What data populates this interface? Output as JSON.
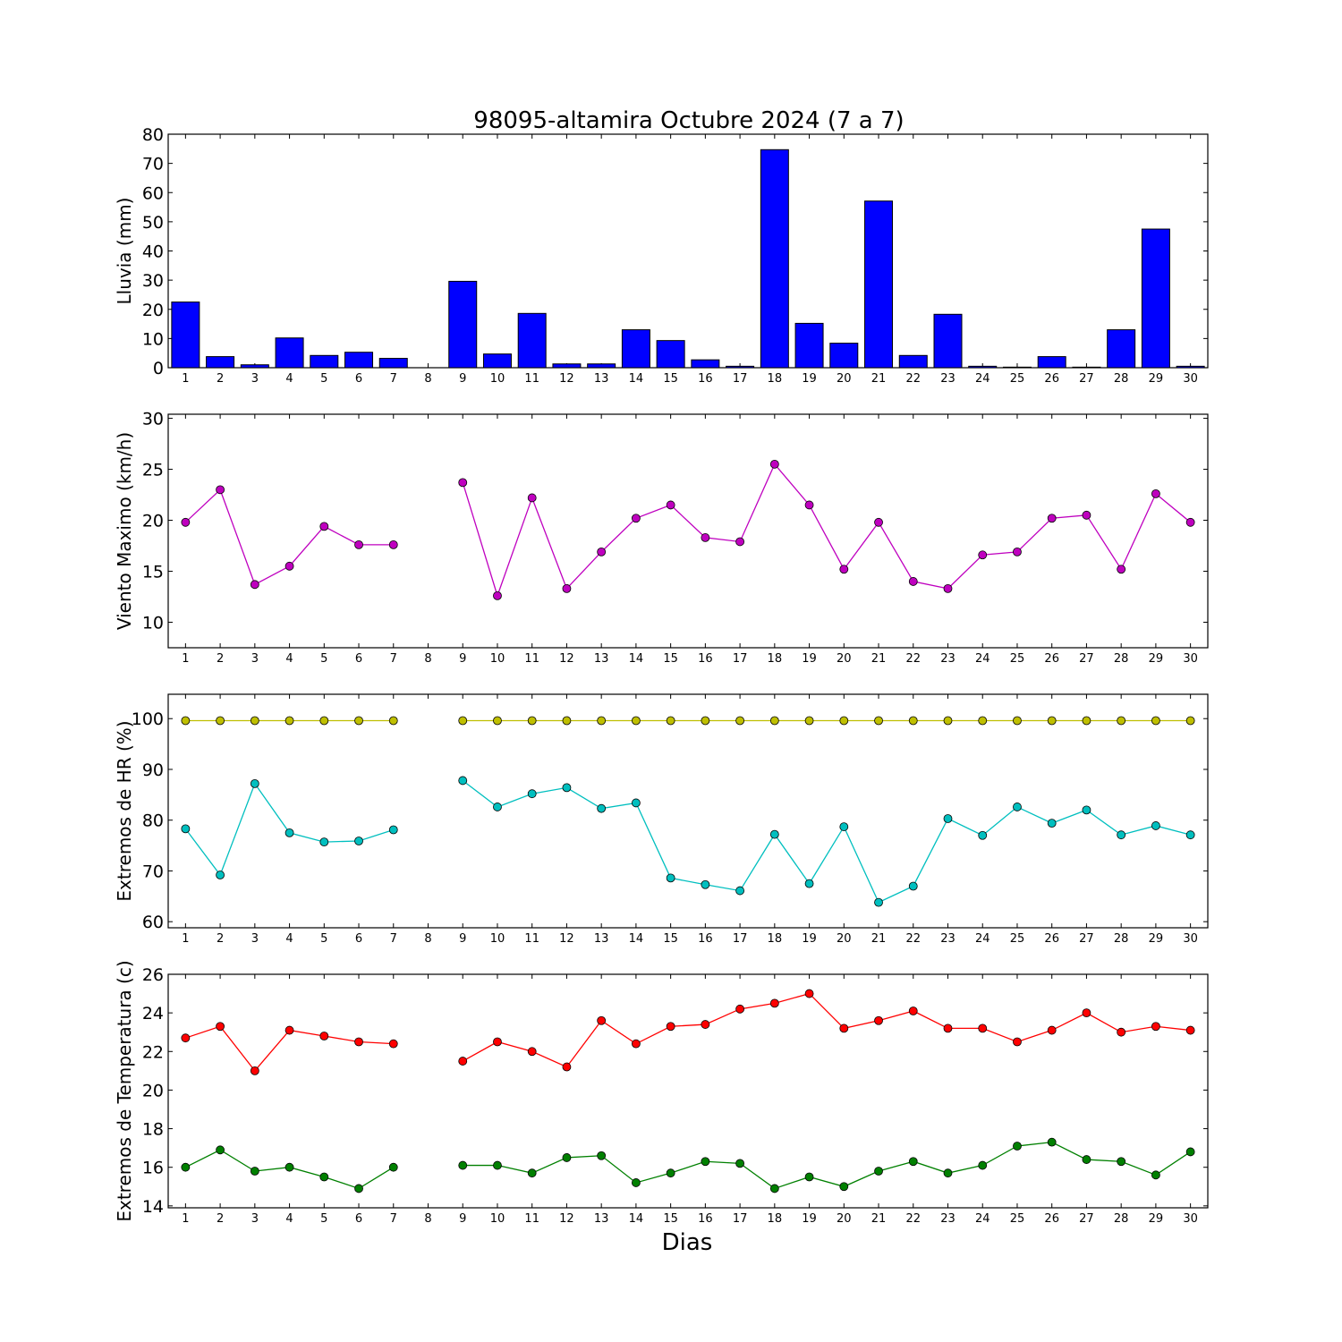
{
  "figure": {
    "title": "98095-altamira Octubre 2024  (7 a 7)",
    "xlabel": "Dias"
  },
  "chart_data": [
    {
      "type": "bar",
      "ylabel": "Lluvia (mm)",
      "ylim": [
        0,
        80
      ],
      "yticks": [
        0,
        10,
        20,
        30,
        40,
        50,
        60,
        70,
        80
      ],
      "categories": [
        "1",
        "2",
        "3",
        "4",
        "5",
        "6",
        "7",
        "8",
        "9",
        "10",
        "11",
        "12",
        "13",
        "14",
        "15",
        "16",
        "17",
        "18",
        "19",
        "20",
        "21",
        "22",
        "23",
        "24",
        "25",
        "26",
        "27",
        "28",
        "29",
        "30"
      ],
      "values": [
        22.5,
        3.8,
        1.0,
        10.2,
        4.2,
        5.3,
        3.2,
        null,
        29.6,
        4.7,
        18.6,
        1.3,
        1.3,
        13.0,
        9.3,
        2.7,
        0.5,
        74.7,
        15.2,
        8.4,
        57.1,
        4.2,
        18.3,
        0.5,
        0.2,
        3.8,
        0.2,
        13.0,
        47.5,
        0.5
      ],
      "colors": {
        "bar": "#0000ff",
        "edge": "#000000"
      }
    },
    {
      "type": "line",
      "ylabel": "Viento Maximo (km/h)",
      "ylim": [
        7.5,
        30.4
      ],
      "yticks": [
        10,
        15,
        20,
        25,
        30
      ],
      "categories": [
        "1",
        "2",
        "3",
        "4",
        "5",
        "6",
        "7",
        "8",
        "9",
        "10",
        "11",
        "12",
        "13",
        "14",
        "15",
        "16",
        "17",
        "18",
        "19",
        "20",
        "21",
        "22",
        "23",
        "24",
        "25",
        "26",
        "27",
        "28",
        "29",
        "30"
      ],
      "series": [
        {
          "color": "#bf00bf",
          "values": [
            19.8,
            23.0,
            13.7,
            15.5,
            19.4,
            17.6,
            17.6,
            null,
            23.7,
            12.6,
            22.2,
            13.3,
            16.9,
            20.2,
            21.5,
            18.3,
            17.9,
            25.5,
            21.5,
            15.2,
            19.8,
            14.0,
            13.3,
            16.6,
            16.9,
            20.2,
            20.5,
            15.2,
            22.6,
            19.8
          ]
        }
      ]
    },
    {
      "type": "line",
      "ylabel": "Extremos de HR (%)",
      "ylim": [
        58.8,
        104.8
      ],
      "yticks": [
        60,
        70,
        80,
        90,
        100
      ],
      "categories": [
        "1",
        "2",
        "3",
        "4",
        "5",
        "6",
        "7",
        "8",
        "9",
        "10",
        "11",
        "12",
        "13",
        "14",
        "15",
        "16",
        "17",
        "18",
        "19",
        "20",
        "21",
        "22",
        "23",
        "24",
        "25",
        "26",
        "27",
        "28",
        "29",
        "30"
      ],
      "series": [
        {
          "color": "#bfbf00",
          "values": [
            99.6,
            99.6,
            99.6,
            99.6,
            99.6,
            99.6,
            99.6,
            null,
            99.6,
            99.6,
            99.6,
            99.6,
            99.6,
            99.6,
            99.6,
            99.6,
            99.6,
            99.6,
            99.6,
            99.6,
            99.6,
            99.6,
            99.6,
            99.6,
            99.6,
            99.6,
            99.6,
            99.6,
            99.6,
            99.6
          ]
        },
        {
          "color": "#00bfbf",
          "values": [
            78.3,
            69.2,
            87.2,
            77.5,
            75.7,
            75.9,
            78.1,
            null,
            87.8,
            82.6,
            85.2,
            86.4,
            82.3,
            83.4,
            68.6,
            67.3,
            66.1,
            77.2,
            67.5,
            78.7,
            63.8,
            67.0,
            80.3,
            77.0,
            82.6,
            79.4,
            82.0,
            77.1,
            78.9,
            77.1
          ]
        }
      ]
    },
    {
      "type": "line",
      "ylabel": "Extremos de Temperatura (c)",
      "ylim": [
        13.9,
        26.0
      ],
      "yticks": [
        14,
        16,
        18,
        20,
        22,
        24,
        26
      ],
      "categories": [
        "1",
        "2",
        "3",
        "4",
        "5",
        "6",
        "7",
        "8",
        "9",
        "10",
        "11",
        "12",
        "13",
        "14",
        "15",
        "16",
        "17",
        "18",
        "19",
        "20",
        "21",
        "22",
        "23",
        "24",
        "25",
        "26",
        "27",
        "28",
        "29",
        "30"
      ],
      "series": [
        {
          "color": "#ff0000",
          "values": [
            22.7,
            23.3,
            21.0,
            23.1,
            22.8,
            22.5,
            22.4,
            null,
            21.5,
            22.5,
            22.0,
            21.2,
            23.6,
            22.4,
            23.3,
            23.4,
            24.2,
            24.5,
            25.0,
            23.2,
            23.6,
            24.1,
            23.2,
            23.2,
            22.5,
            23.1,
            24.0,
            23.0,
            23.3,
            23.1
          ]
        },
        {
          "color": "#008000",
          "values": [
            16.0,
            16.9,
            15.8,
            16.0,
            15.5,
            14.9,
            16.0,
            null,
            16.1,
            16.1,
            15.7,
            16.5,
            16.6,
            15.2,
            15.7,
            16.3,
            16.2,
            14.9,
            15.5,
            15.0,
            15.8,
            16.3,
            15.7,
            16.1,
            17.1,
            17.3,
            16.4,
            16.3,
            15.6,
            16.8
          ]
        }
      ]
    }
  ]
}
